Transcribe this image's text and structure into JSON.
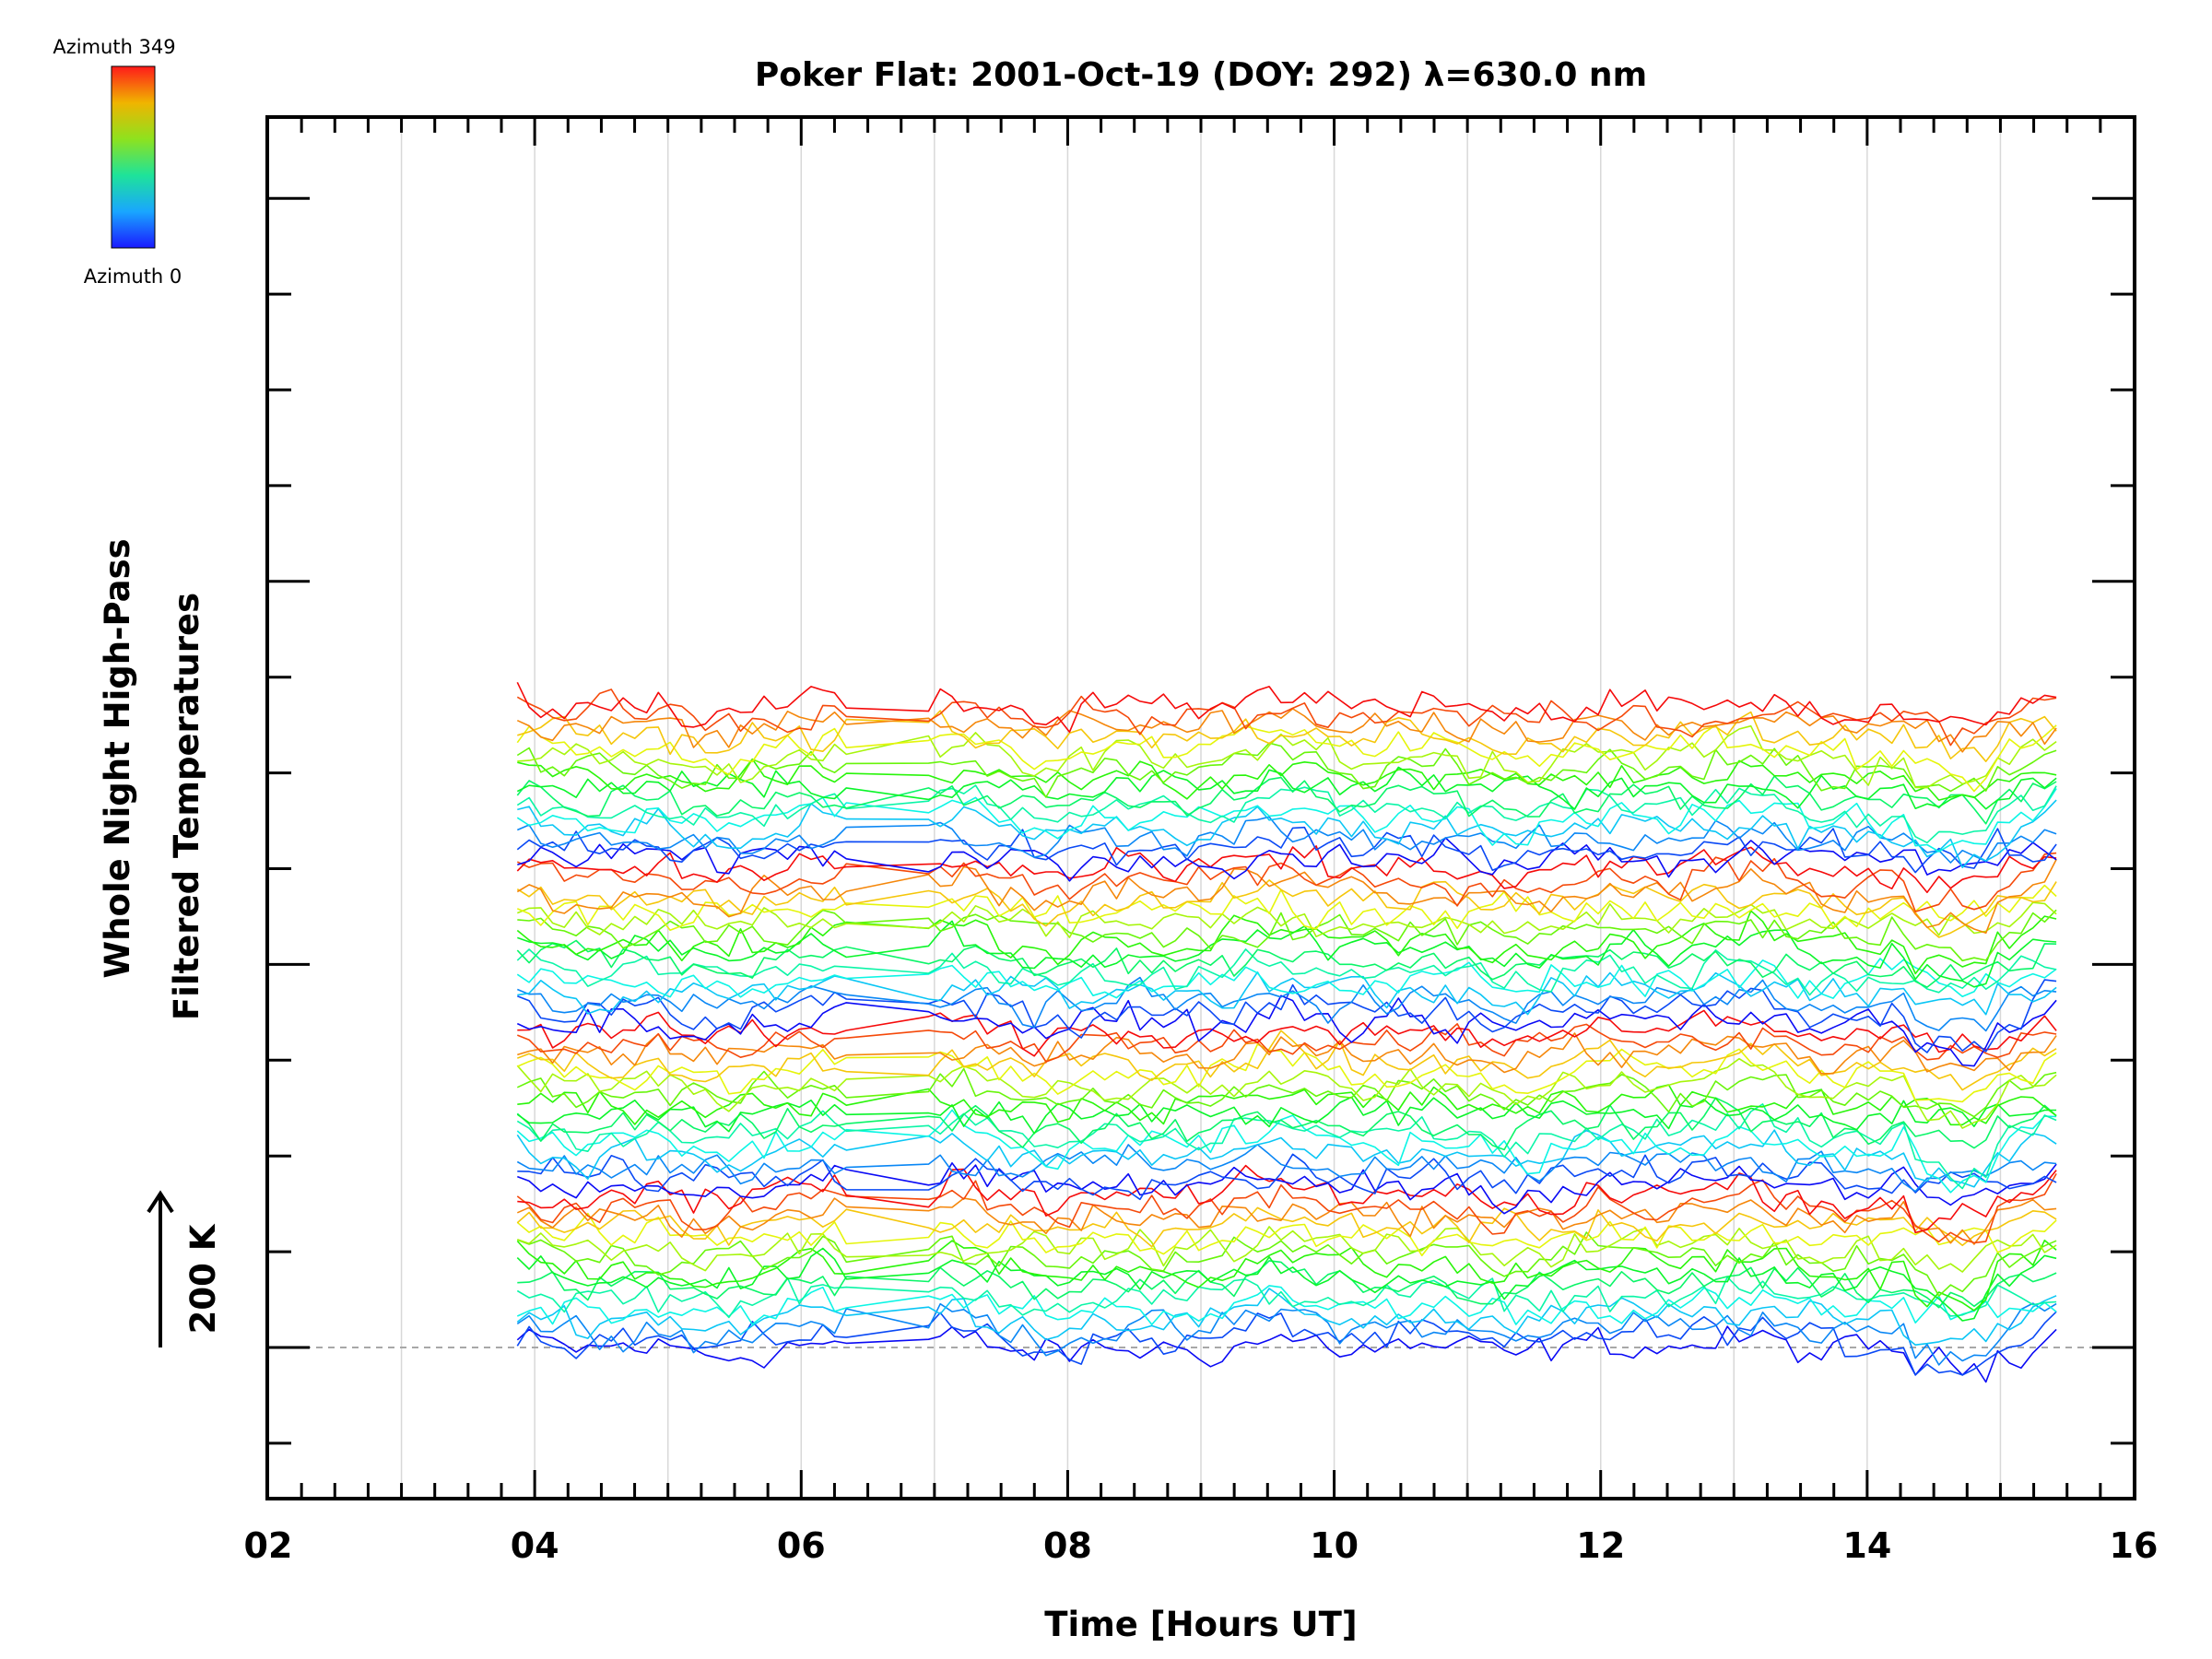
{
  "chart_data": {
    "type": "line",
    "title": "Poker Flat: 2001-Oct-19 (DOY: 292) λ=630.0 nm",
    "xlabel": "Time [Hours UT]",
    "ylabel_line1": "Whole Night High-Pass",
    "ylabel_line2": "Filtered Temperatures",
    "scale_label": "200 K",
    "x_ticks": [
      "02",
      "04",
      "06",
      "08",
      "10",
      "12",
      "14",
      "16"
    ],
    "xlim": [
      2,
      16
    ],
    "x_start": 3.87,
    "x_end": 15.42,
    "n_points": 132,
    "gaps": [
      [
        6.38,
        6.95
      ]
    ],
    "n_series": 64,
    "series_spacing_K": 13.4,
    "offset_scale_K": 200,
    "colorbar": {
      "top_label": "Azimuth  349",
      "bottom_label": "Azimuth  0",
      "colormap": "rainbow"
    },
    "series_note": "Each line is one sky-azimuth channel, color-coded by azimuth (0–349), vertically offset for display."
  }
}
